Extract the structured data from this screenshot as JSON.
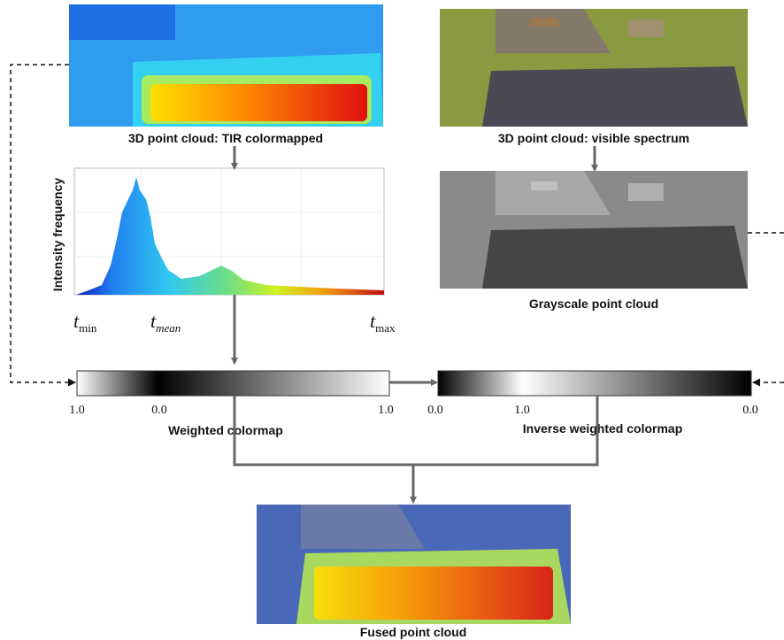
{
  "panels": {
    "tir": {
      "caption": "3D point cloud: TIR colormapped"
    },
    "visible": {
      "caption": "3D point cloud: visible spectrum"
    },
    "grayscale": {
      "caption": "Grayscale point cloud"
    },
    "fused": {
      "caption": "Fused point cloud"
    }
  },
  "histogram": {
    "y_label": "Intensity frequency",
    "ticks": [
      {
        "symbol": "t",
        "sub": "min"
      },
      {
        "symbol": "t",
        "sub": "mean"
      },
      {
        "symbol": "t",
        "sub": "max"
      }
    ]
  },
  "colormaps": [
    {
      "caption": "Weighted colormap",
      "labels": [
        "1.0",
        "0.0",
        "1.0"
      ]
    },
    {
      "caption": "Inverse weighted colormap",
      "labels": [
        "0.0",
        "1.0",
        "0.0"
      ]
    }
  ]
}
